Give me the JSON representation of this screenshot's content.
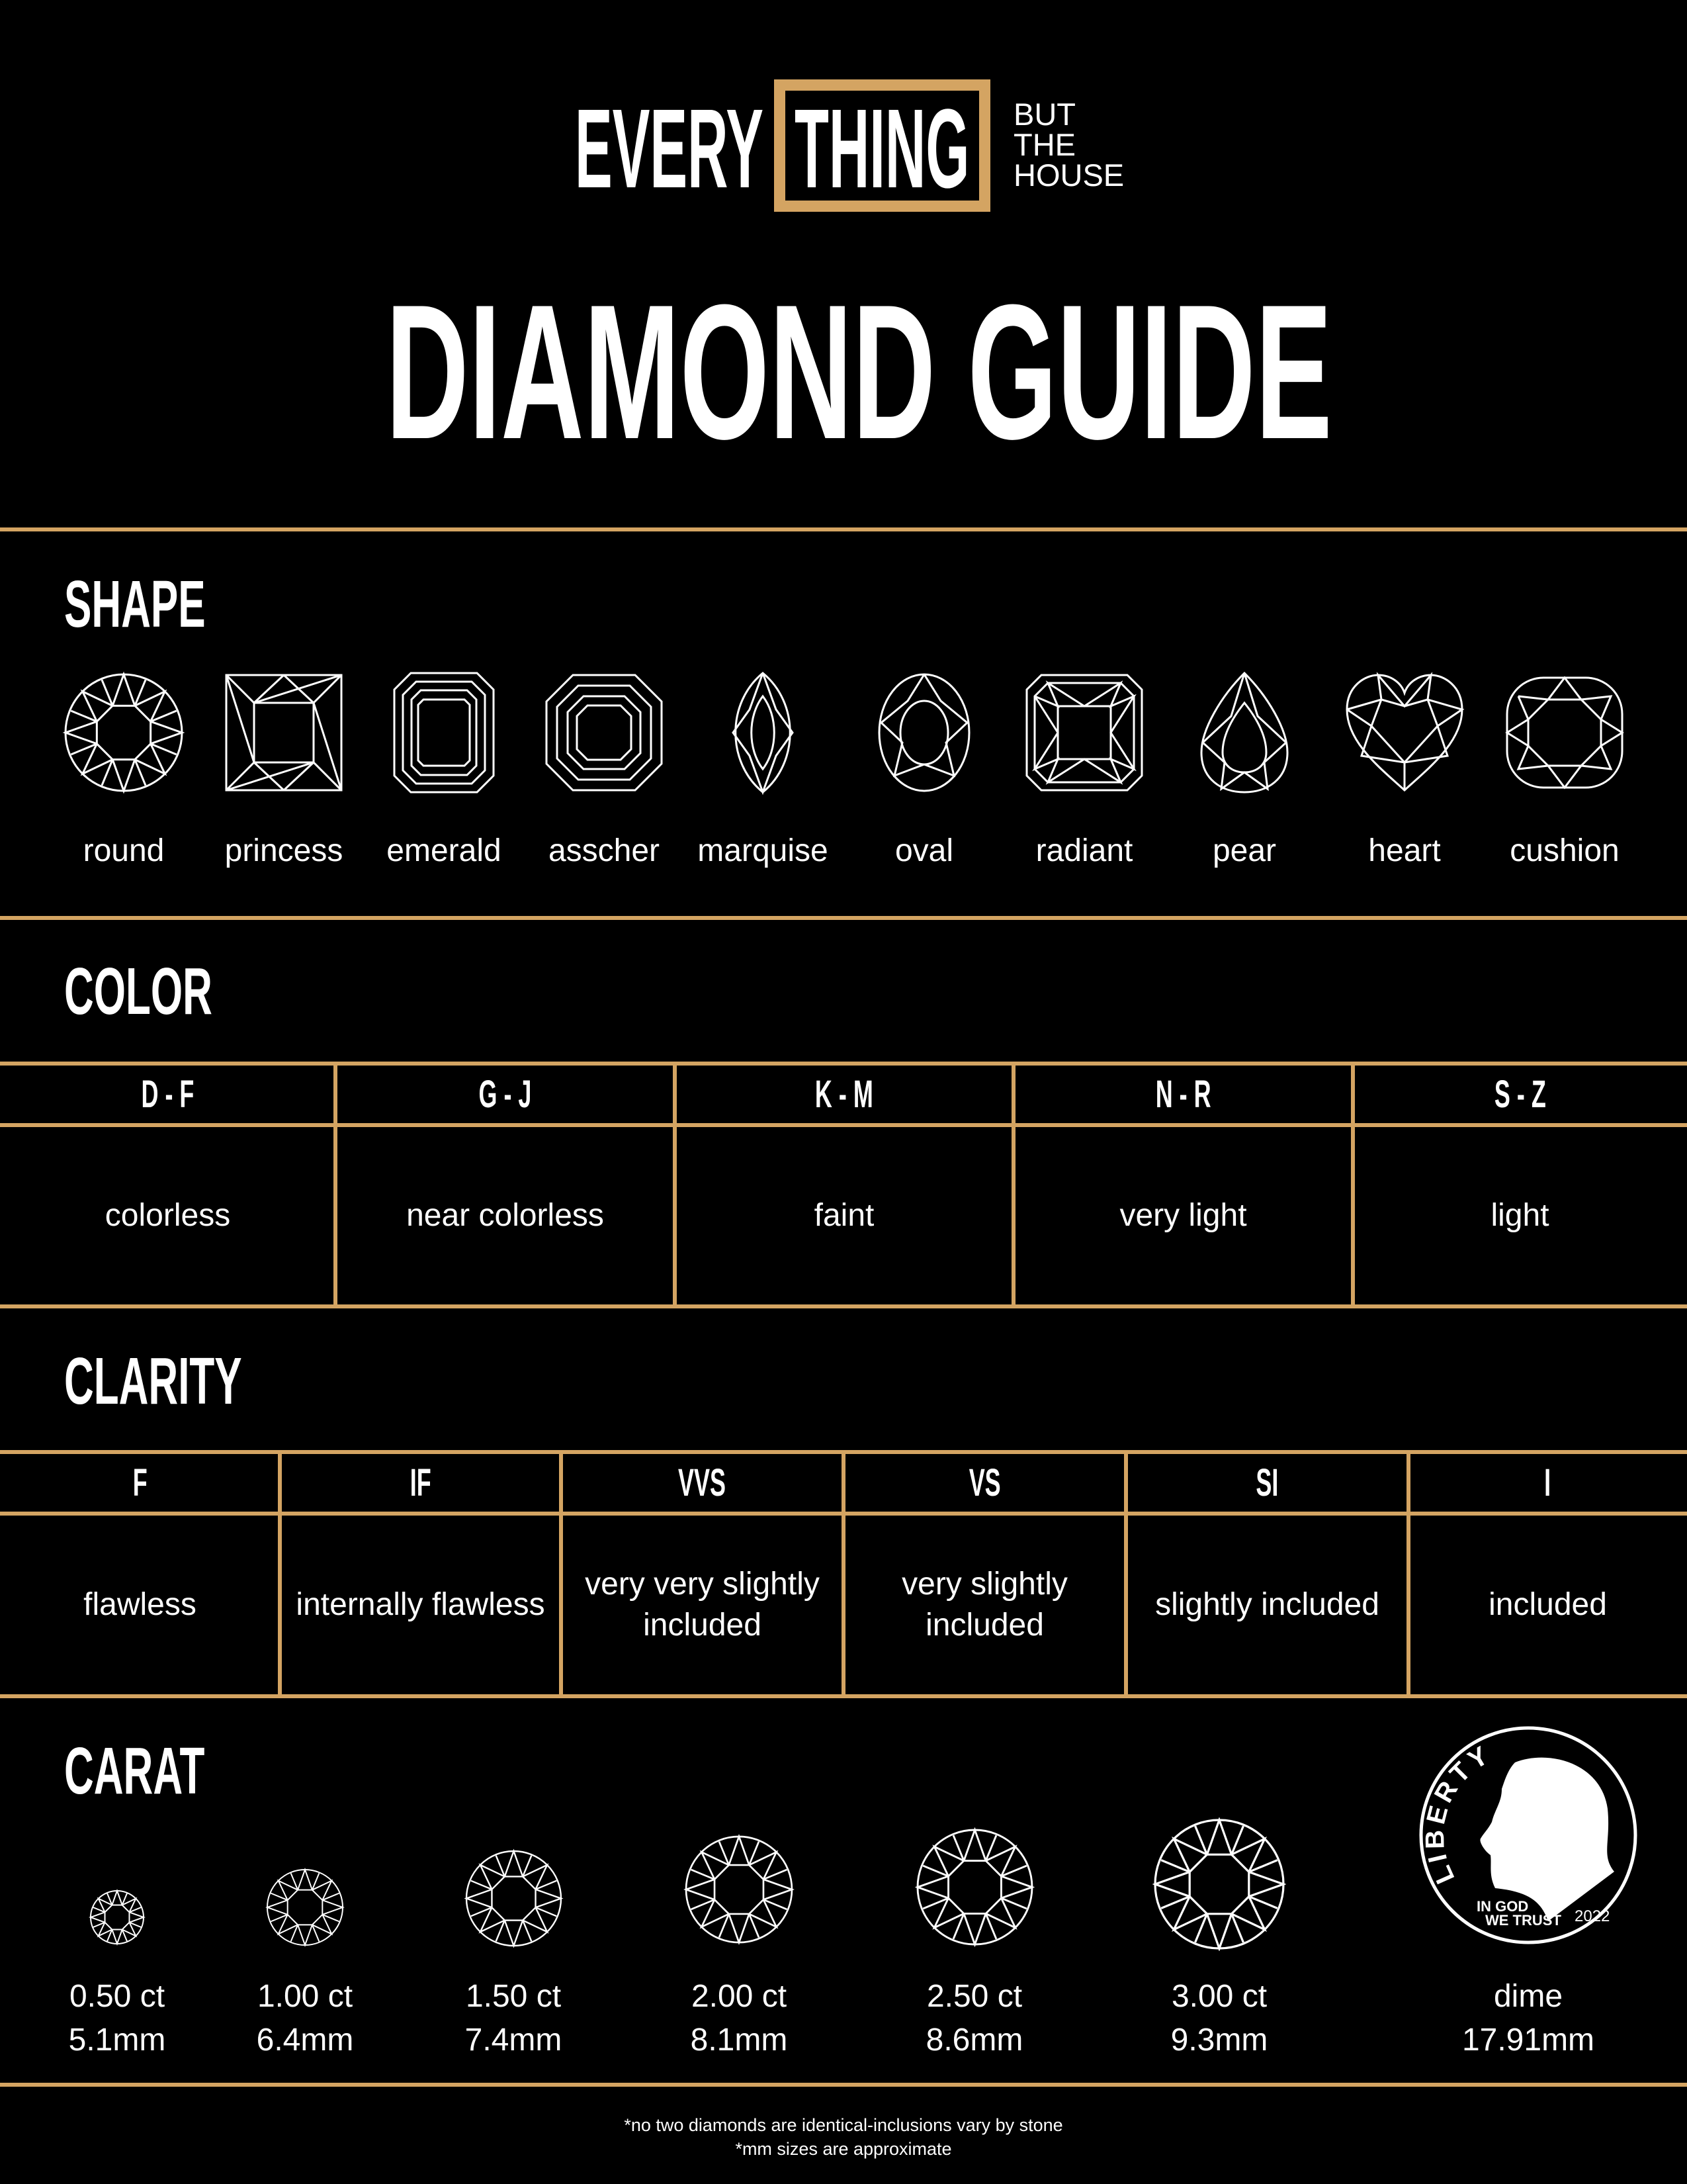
{
  "colors": {
    "gold": "#D4A462",
    "background": "#000000",
    "text": "#FFFFFF"
  },
  "logo": {
    "every": "EVERY",
    "thing": "THING",
    "but": "BUT",
    "the": "THE",
    "house": "HOUSE"
  },
  "title": "DIAMOND GUIDE",
  "shape": {
    "heading": "SHAPE",
    "items": [
      {
        "label": "round",
        "icon": "round-diamond-icon"
      },
      {
        "label": "princess",
        "icon": "princess-diamond-icon"
      },
      {
        "label": "emerald",
        "icon": "emerald-diamond-icon"
      },
      {
        "label": "asscher",
        "icon": "asscher-diamond-icon"
      },
      {
        "label": "marquise",
        "icon": "marquise-diamond-icon"
      },
      {
        "label": "oval",
        "icon": "oval-diamond-icon"
      },
      {
        "label": "radiant",
        "icon": "radiant-diamond-icon"
      },
      {
        "label": "pear",
        "icon": "pear-diamond-icon"
      },
      {
        "label": "heart",
        "icon": "heart-diamond-icon"
      },
      {
        "label": "cushion",
        "icon": "cushion-diamond-icon"
      }
    ]
  },
  "color": {
    "heading": "COLOR",
    "columns": [
      {
        "grade": "D - F",
        "desc": "colorless"
      },
      {
        "grade": "G - J",
        "desc": "near colorless"
      },
      {
        "grade": "K - M",
        "desc": "faint"
      },
      {
        "grade": "N - R",
        "desc": "very light"
      },
      {
        "grade": "S - Z",
        "desc": "light"
      }
    ]
  },
  "clarity": {
    "heading": "CLARITY",
    "columns": [
      {
        "grade": "F",
        "desc": "flawless"
      },
      {
        "grade": "IF",
        "desc": "internally flawless"
      },
      {
        "grade": "VVS",
        "desc": "very very slightly included"
      },
      {
        "grade": "VS",
        "desc": "very slightly included"
      },
      {
        "grade": "SI",
        "desc": "slightly included"
      },
      {
        "grade": "I",
        "desc": "included"
      }
    ]
  },
  "carat": {
    "heading": "CARAT",
    "items": [
      {
        "weight": "0.50 ct",
        "size": "5.1mm"
      },
      {
        "weight": "1.00 ct",
        "size": "6.4mm"
      },
      {
        "weight": "1.50 ct",
        "size": "7.4mm"
      },
      {
        "weight": "2.00 ct",
        "size": "8.1mm"
      },
      {
        "weight": "2.50 ct",
        "size": "8.6mm"
      },
      {
        "weight": "3.00 ct",
        "size": "9.3mm"
      }
    ],
    "dime": {
      "label": "dime",
      "size": "17.91mm",
      "liberty": "LIBERTY",
      "motto1": "IN GOD",
      "motto2": "WE TRUST",
      "year": "2022"
    }
  },
  "footnotes": [
    "*no two diamonds are identical-inclusions vary by stone",
    "*mm sizes are approximate"
  ]
}
